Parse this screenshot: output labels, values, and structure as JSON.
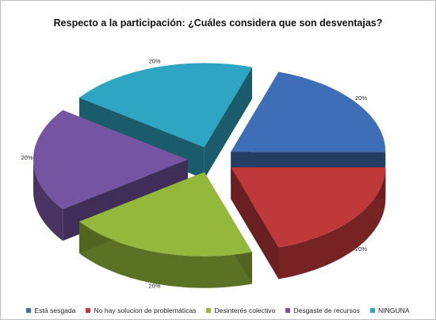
{
  "chart_data": {
    "type": "pie",
    "title": "Respecto a la participación: ¿Cuáles considera que son desventajas?",
    "style": "3d-exploded",
    "legend_position": "bottom",
    "categories": [
      "Está sesgada",
      "No  hay solucion de problemáticas",
      "Desinterés colectivo",
      "Desgaste de recursos",
      "NINGUNA"
    ],
    "values": [
      20,
      20,
      20,
      20,
      20
    ],
    "labels": [
      "20%",
      "20%",
      "20%",
      "20%",
      "20%"
    ],
    "colors": [
      "#3F6EB8",
      "#C0393A",
      "#93B83C",
      "#7554A1",
      "#2FA5C4"
    ]
  }
}
